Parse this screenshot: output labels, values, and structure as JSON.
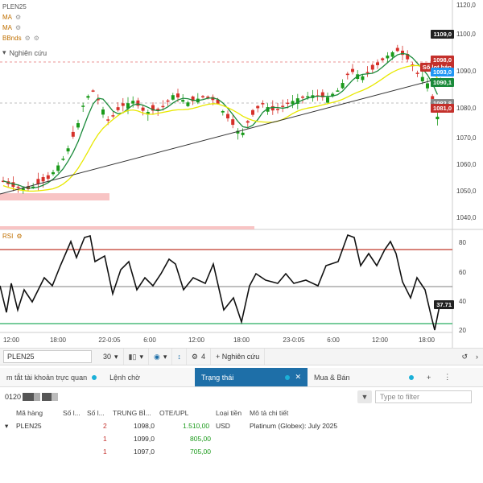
{
  "indicators": {
    "symbol": "PLEN25",
    "ma1": "MA",
    "ma2": "MA",
    "bbands": "BBnds",
    "study_label": "Nghiên cứu",
    "rsi": "RSI"
  },
  "price_axis": {
    "ticks": [
      "1120,0",
      "1100,0",
      "1090,0",
      "1080,0",
      "1070,0",
      "1060,0",
      "1050,0",
      "1040,0"
    ],
    "tags": {
      "high": "1109,0",
      "t1098": "1098,0",
      "order_label": "Số lot bán",
      "t1093": "1093,0",
      "t1090": "1090,1",
      "t1082": "1082,8",
      "t1081": "1081,0"
    }
  },
  "rsi_axis": {
    "ticks": [
      "80",
      "60",
      "40",
      "20"
    ],
    "value": "37.71"
  },
  "time_axis": [
    "12:00",
    "18:00",
    "22-0:05",
    "6:00",
    "12:00",
    "18:00",
    "23-0:05",
    "6:00",
    "12:00",
    "18:00"
  ],
  "toolbar": {
    "symbol": "PLEN25",
    "interval": "30",
    "count": "4",
    "study_button": "+ Nghiên cứu"
  },
  "tabs": {
    "summary": "m tắt tài khoản trực quan",
    "orders": "Lệnh chờ",
    "status": "Trạng thái",
    "buy_sell": "Mua & Bán"
  },
  "filter": {
    "account": "0120",
    "placeholder": "Type to filter"
  },
  "positions_table": {
    "headers": [
      "Mã hàng",
      "Số l...",
      "Số l...",
      "TRUNG BÌ...",
      "OTE/UPL",
      "Loại tiền",
      "Mô tả chi tiết"
    ],
    "rows": [
      {
        "symbol": "PLEN25",
        "qty1": "",
        "qty2": "2",
        "avg": "1098,0",
        "ote": "1.510,00",
        "currency": "USD",
        "desc": "Platinum (Globex): July 2025"
      },
      {
        "symbol": "",
        "qty1": "",
        "qty2": "1",
        "avg": "1099,0",
        "ote": "805,00",
        "currency": "",
        "desc": ""
      },
      {
        "symbol": "",
        "qty1": "",
        "qty2": "1",
        "avg": "1097,0",
        "ote": "705,00",
        "currency": "",
        "desc": ""
      }
    ]
  },
  "colors": {
    "up": "#1a9a1a",
    "down": "#d6312a",
    "ma_fast": "#1a8a3a",
    "ma_slow": "#e8e800",
    "rsi_upper": "#c0392b",
    "rsi_lower": "#27ae60",
    "tab_active": "#1e6fa8"
  }
}
